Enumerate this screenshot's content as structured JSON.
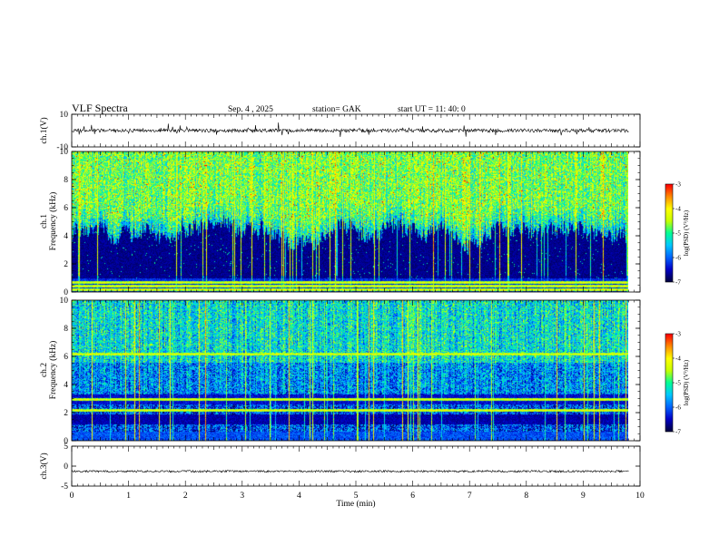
{
  "header": {
    "title": "VLF  Spectra",
    "date": "Sep. 4   , 2025",
    "station": "station= GAK",
    "start": "start  UT  =    11: 40: 0"
  },
  "chart_data": [
    {
      "type": "line",
      "panel": "ch1-waveform",
      "ylabel": "ch.1(V)",
      "ylim": [
        -10,
        10
      ],
      "yticks": [
        10,
        -10
      ],
      "xlim": [
        0,
        10
      ],
      "baseline": 0
    },
    {
      "type": "heatmap",
      "panel": "ch1-spectrogram",
      "ylabel": "ch.1\nFrequency  (kHz)",
      "ylim": [
        0,
        10
      ],
      "yticks": [
        0,
        2,
        4,
        6,
        8,
        10
      ],
      "xlim": [
        0,
        10
      ],
      "colorbar": {
        "label": "log(PSD) (V²/Hz)",
        "range": [
          -7,
          -3
        ],
        "ticks": [
          -3,
          -4,
          -5,
          -6,
          -7
        ]
      },
      "horizontal_lines_khz": [
        0.7,
        0.45,
        0.2
      ]
    },
    {
      "type": "heatmap",
      "panel": "ch2-spectrogram",
      "ylabel": "ch.2\nFrequency  (kHz)",
      "ylim": [
        0,
        10
      ],
      "yticks": [
        0,
        2,
        4,
        6,
        8,
        10
      ],
      "xlim": [
        0,
        10
      ],
      "colorbar": {
        "label": "log(PSD) (V²/Hz)",
        "range": [
          -7,
          -3
        ],
        "ticks": [
          -3,
          -4,
          -5,
          -6,
          -7
        ]
      },
      "horizontal_lines_khz": [
        6.2,
        3.0,
        2.2
      ]
    },
    {
      "type": "line",
      "panel": "ch3-waveform",
      "ylabel": "ch.3(V)",
      "ylim": [
        -5,
        5
      ],
      "yticks": [
        5,
        0,
        -5
      ],
      "xlim": [
        0,
        10
      ],
      "baseline": -1.3
    }
  ],
  "xaxis": {
    "label": "Time  (min)",
    "ticks": [
      0,
      1,
      2,
      3,
      4,
      5,
      6,
      7,
      8,
      9,
      10
    ],
    "data_end": 9.8
  },
  "colors": {
    "colormap": [
      "#000040",
      "#0000c8",
      "#0064ff",
      "#00c8ff",
      "#00ff96",
      "#c8ff00",
      "#ffff00",
      "#ff8c00",
      "#ff0000"
    ]
  }
}
